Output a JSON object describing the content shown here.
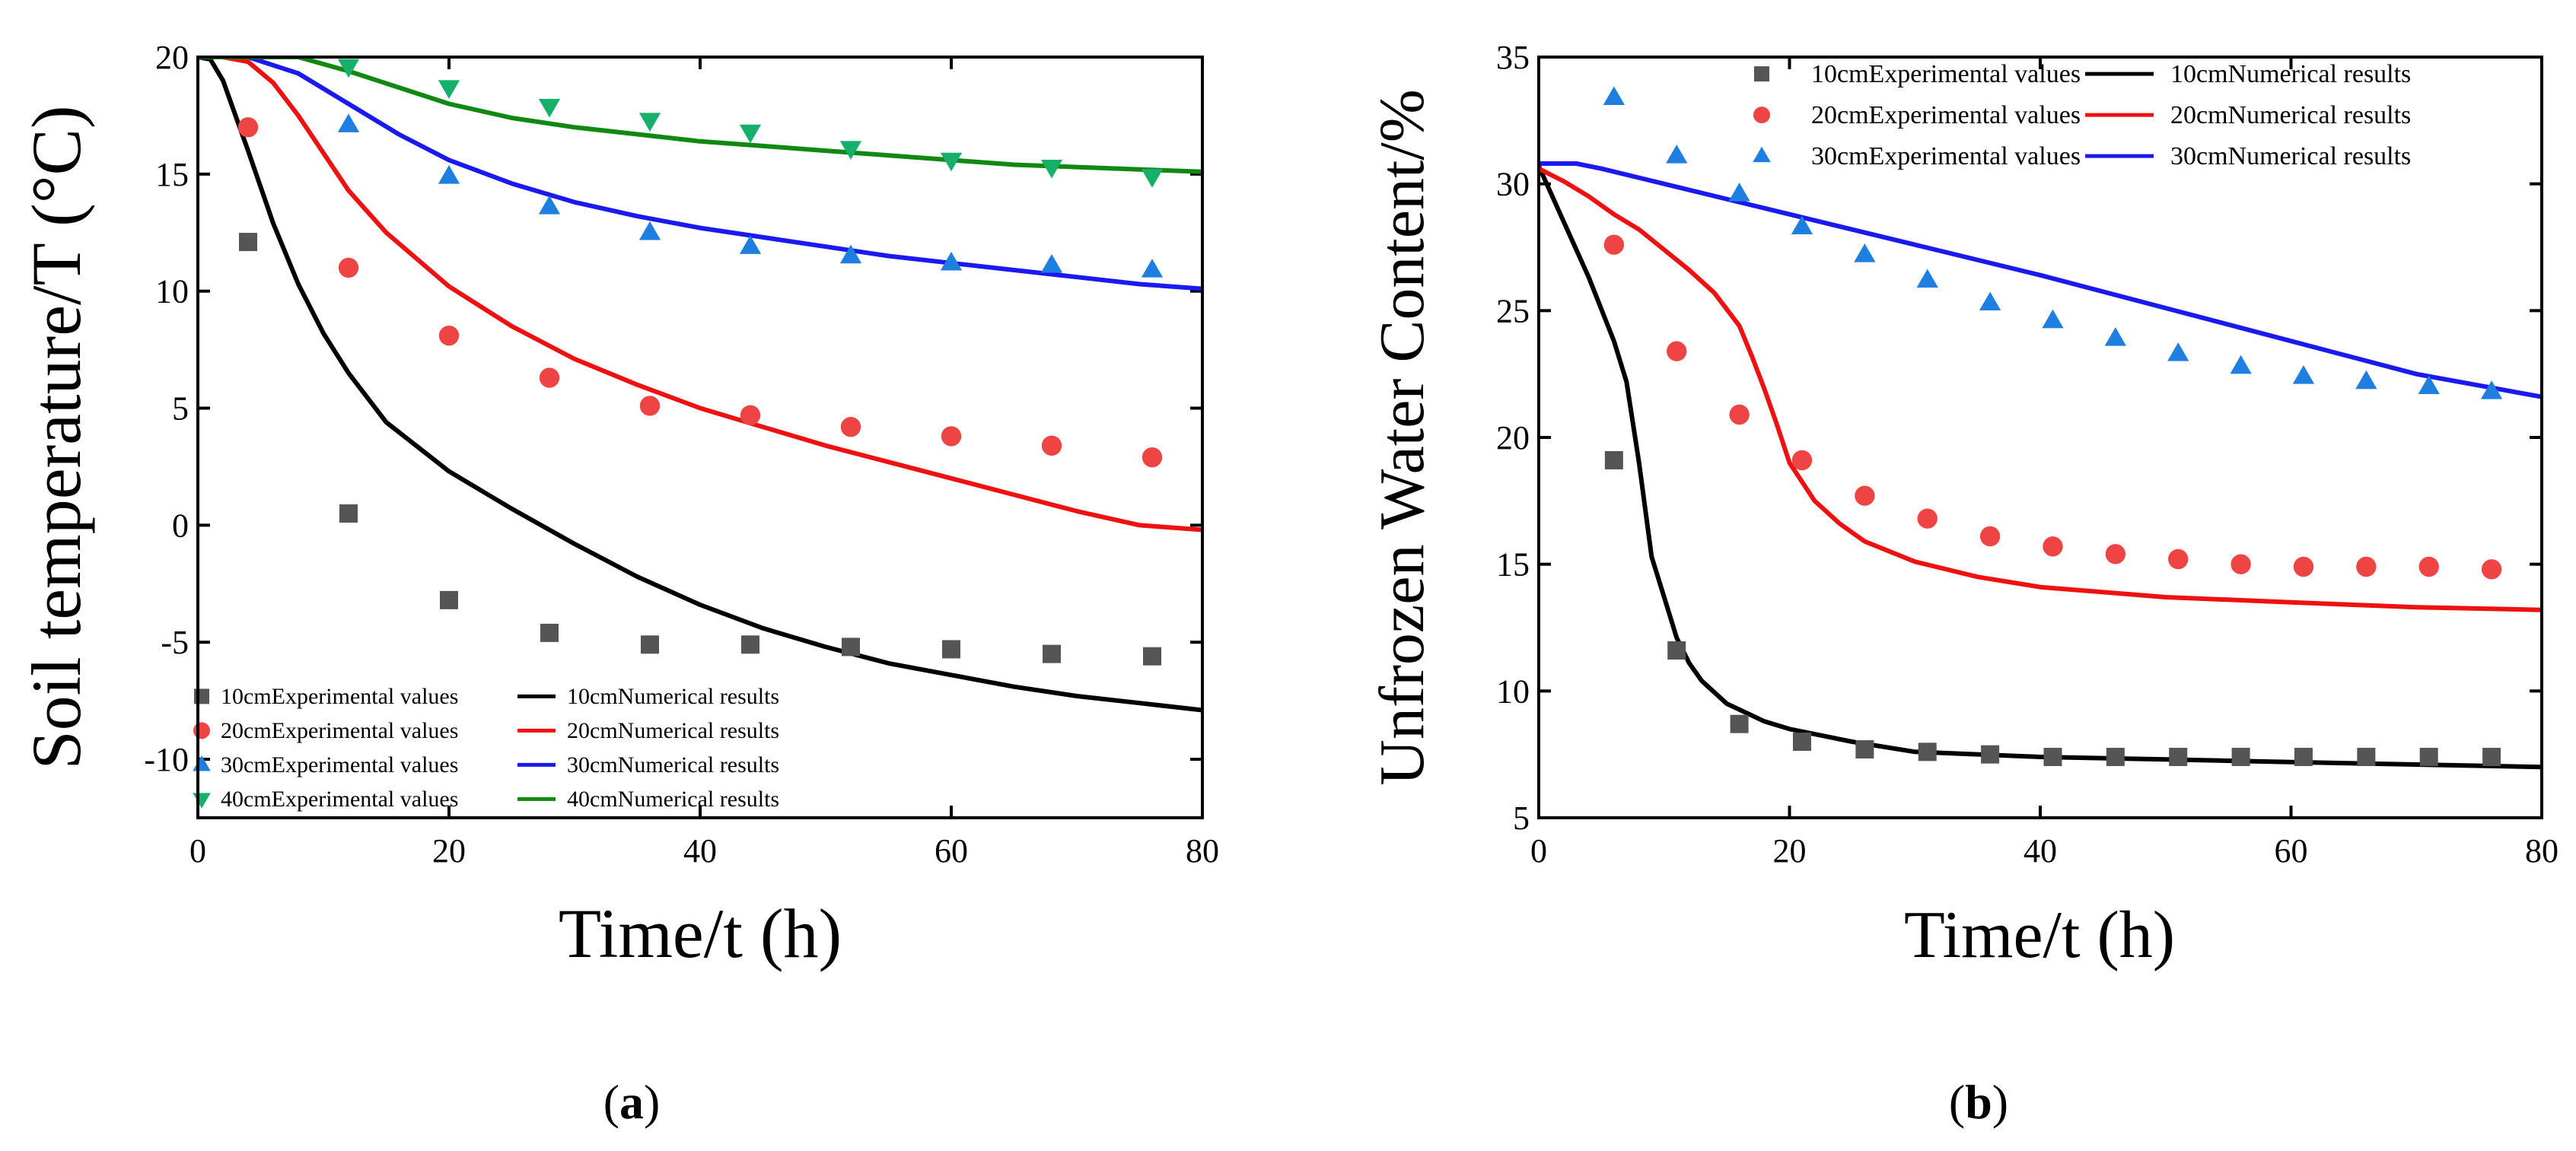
{
  "colors": {
    "10cm": "#555555",
    "20cm": "#ef4444",
    "30cm": "#1e7fe0",
    "40cm": "#16b06a",
    "10cm_line": "#000000",
    "20cm_line": "#ee1111",
    "30cm_line": "#1a1aee",
    "40cm_line": "#118811"
  },
  "panel_labels": {
    "a": {
      "open": "(",
      "letter": "a",
      "close": ")"
    },
    "b": {
      "open": "(",
      "letter": "b",
      "close": ")"
    }
  },
  "chart_data": [
    {
      "id": "a",
      "type": "scatter+line",
      "xlabel": "Time/t (h)",
      "ylabel": "Soil temperature/T (°C)",
      "xlim": [
        0,
        80
      ],
      "ylim": [
        -12.5,
        20
      ],
      "xticks": [
        0,
        20,
        40,
        60,
        80
      ],
      "yticks": [
        -10,
        -5,
        0,
        5,
        10,
        15,
        20
      ],
      "legend_position": "bottom-left",
      "scatter_series": [
        {
          "name": "10cmExperimental values",
          "marker": "square",
          "color_key": "10cm",
          "x": [
            4,
            12,
            20,
            28,
            36,
            44,
            52,
            60,
            68,
            76
          ],
          "y": [
            12.1,
            0.5,
            -3.2,
            -4.6,
            -5.1,
            -5.1,
            -5.2,
            -5.3,
            -5.5,
            -5.6
          ]
        },
        {
          "name": "20cmExperimental values",
          "marker": "circle",
          "color_key": "20cm",
          "x": [
            4,
            12,
            20,
            28,
            36,
            44,
            52,
            60,
            68,
            76
          ],
          "y": [
            17.0,
            11.0,
            8.1,
            6.3,
            5.1,
            4.7,
            4.2,
            3.8,
            3.4,
            2.9
          ]
        },
        {
          "name": "30cmExperimental values",
          "marker": "triangle-up",
          "color_key": "30cm",
          "x": [
            12,
            20,
            28,
            36,
            44,
            52,
            60,
            68,
            76
          ],
          "y": [
            17.1,
            14.9,
            13.6,
            12.5,
            11.9,
            11.5,
            11.2,
            11.1,
            10.9
          ]
        },
        {
          "name": "40cmExperimental values",
          "marker": "triangle-down",
          "color_key": "40cm",
          "x": [
            12,
            20,
            28,
            36,
            44,
            52,
            60,
            68,
            76
          ],
          "y": [
            19.6,
            18.7,
            17.9,
            17.3,
            16.8,
            16.1,
            15.6,
            15.3,
            14.9
          ]
        }
      ],
      "line_series": [
        {
          "name": "10cmNumerical results",
          "color_key": "10cm_line",
          "x": [
            0,
            1,
            2,
            4,
            6,
            8,
            10,
            12,
            15,
            20,
            25,
            30,
            35,
            40,
            45,
            50,
            55,
            60,
            65,
            70,
            75,
            80
          ],
          "y": [
            20,
            19.9,
            19,
            16,
            12.9,
            10.3,
            8.2,
            6.5,
            4.4,
            2.3,
            0.7,
            -0.8,
            -2.2,
            -3.4,
            -4.4,
            -5.2,
            -5.9,
            -6.4,
            -6.9,
            -7.3,
            -7.6,
            -7.9
          ]
        },
        {
          "name": "20cmNumerical results",
          "color_key": "20cm_line",
          "x": [
            0,
            2,
            4,
            6,
            8,
            10,
            12,
            15,
            20,
            25,
            30,
            35,
            40,
            45,
            50,
            55,
            60,
            65,
            70,
            75,
            80
          ],
          "y": [
            20,
            20,
            19.8,
            18.9,
            17.5,
            15.9,
            14.3,
            12.5,
            10.2,
            8.5,
            7.1,
            6.0,
            5.0,
            4.2,
            3.4,
            2.7,
            2.0,
            1.3,
            0.6,
            0.0,
            -0.2
          ]
        },
        {
          "name": "30cmNumerical results",
          "color_key": "30cm_line",
          "x": [
            0,
            4,
            8,
            12,
            16,
            20,
            25,
            30,
            35,
            40,
            45,
            50,
            55,
            60,
            65,
            70,
            75,
            80
          ],
          "y": [
            20,
            20,
            19.3,
            18.0,
            16.7,
            15.6,
            14.6,
            13.8,
            13.2,
            12.7,
            12.3,
            11.9,
            11.5,
            11.2,
            10.9,
            10.6,
            10.3,
            10.1
          ]
        },
        {
          "name": "40cmNumerical results",
          "color_key": "40cm_line",
          "x": [
            0,
            4,
            8,
            12,
            16,
            20,
            25,
            30,
            35,
            40,
            45,
            50,
            55,
            60,
            65,
            70,
            75,
            80
          ],
          "y": [
            20,
            20,
            20,
            19.4,
            18.7,
            18.0,
            17.4,
            17.0,
            16.7,
            16.4,
            16.2,
            16.0,
            15.8,
            15.6,
            15.4,
            15.3,
            15.2,
            15.1
          ]
        }
      ],
      "legend": {
        "rows": [
          {
            "exp": "10cmExperimental values",
            "num": "10cmNumerical results"
          },
          {
            "exp": "20cmExperimental values",
            "num": "20cmNumerical results"
          },
          {
            "exp": "30cmExperimental values",
            "num": "30cmNumerical results"
          },
          {
            "exp": "40cmExperimental values",
            "num": "40cmNumerical results"
          }
        ]
      }
    },
    {
      "id": "b",
      "type": "scatter+line",
      "xlabel": "Time/t (h)",
      "ylabel": "Unfrozen Water Content/%",
      "xlim": [
        0,
        80
      ],
      "ylim": [
        5,
        35
      ],
      "xticks": [
        0,
        20,
        40,
        60,
        80
      ],
      "yticks": [
        5,
        10,
        15,
        20,
        25,
        30,
        35
      ],
      "legend_position": "top-right",
      "scatter_series": [
        {
          "name": "10cmExperimental values",
          "marker": "square",
          "color_key": "10cm",
          "x": [
            6,
            11,
            16,
            21,
            26,
            31,
            36,
            41,
            46,
            51,
            56,
            61,
            66,
            71,
            76
          ],
          "y": [
            19.1,
            11.6,
            8.7,
            8.0,
            7.7,
            7.6,
            7.5,
            7.4,
            7.4,
            7.4,
            7.4,
            7.4,
            7.4,
            7.4,
            7.4
          ]
        },
        {
          "name": "20cmExperimental values",
          "marker": "circle",
          "color_key": "20cm",
          "x": [
            6,
            11,
            16,
            21,
            26,
            31,
            36,
            41,
            46,
            51,
            56,
            61,
            66,
            71,
            76
          ],
          "y": [
            27.6,
            23.4,
            20.9,
            19.1,
            17.7,
            16.8,
            16.1,
            15.7,
            15.4,
            15.2,
            15.0,
            14.9,
            14.9,
            14.9,
            14.8
          ]
        },
        {
          "name": "30cmExperimental values",
          "marker": "triangle-up",
          "color_key": "30cm",
          "x": [
            6,
            11,
            16,
            21,
            26,
            31,
            36,
            41,
            46,
            51,
            56,
            61,
            66,
            71,
            76
          ],
          "y": [
            33.4,
            31.1,
            29.6,
            28.3,
            27.2,
            26.2,
            25.3,
            24.6,
            23.9,
            23.3,
            22.8,
            22.4,
            22.2,
            22.0,
            21.8
          ]
        }
      ],
      "line_series": [
        {
          "name": "10cmNumerical results",
          "color_key": "10cm_line",
          "x": [
            0,
            2,
            4,
            6,
            7,
            8,
            9,
            10,
            11,
            12,
            13,
            15,
            18,
            20,
            25,
            30,
            40,
            50,
            60,
            70,
            80
          ],
          "y": [
            30.7,
            28.5,
            26.3,
            23.8,
            22.2,
            19.0,
            15.3,
            13.7,
            12.1,
            11.1,
            10.4,
            9.5,
            8.8,
            8.5,
            8.0,
            7.6,
            7.4,
            7.3,
            7.2,
            7.1,
            7.0
          ]
        },
        {
          "name": "20cmNumerical results",
          "color_key": "20cm_line",
          "x": [
            0,
            2,
            4,
            6,
            8,
            10,
            12,
            14,
            16,
            17,
            18,
            19,
            20,
            22,
            24,
            26,
            30,
            35,
            40,
            50,
            60,
            70,
            80
          ],
          "y": [
            30.6,
            30.1,
            29.5,
            28.8,
            28.2,
            27.4,
            26.6,
            25.7,
            24.4,
            23.2,
            21.9,
            20.5,
            19.0,
            17.5,
            16.6,
            15.9,
            15.1,
            14.5,
            14.1,
            13.7,
            13.5,
            13.3,
            13.2
          ]
        },
        {
          "name": "30cmNumerical results",
          "color_key": "30cm_line",
          "x": [
            0,
            3,
            5,
            10,
            20,
            30,
            40,
            50,
            60,
            70,
            80
          ],
          "y": [
            30.8,
            30.8,
            30.6,
            30.0,
            28.8,
            27.6,
            26.4,
            25.1,
            23.8,
            22.5,
            21.6
          ]
        }
      ],
      "legend": {
        "rows": [
          {
            "exp": "10cmExperimental values",
            "num": "10cmNumerical results"
          },
          {
            "exp": "20cmExperimental values",
            "num": "20cmNumerical results"
          },
          {
            "exp": "30cmExperimental values",
            "num": "30cmNumerical results"
          }
        ]
      }
    }
  ]
}
